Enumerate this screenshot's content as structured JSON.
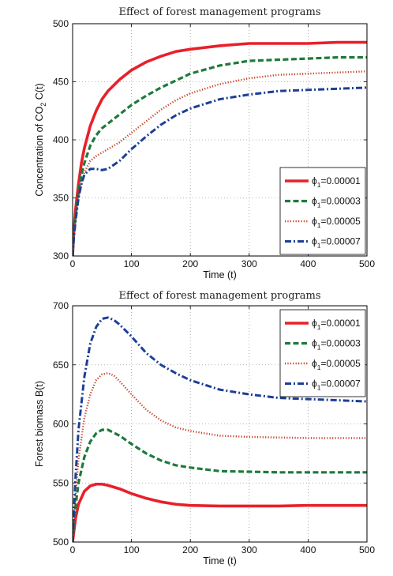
{
  "chart_data": [
    {
      "type": "line",
      "title": "Effect of forest management programs",
      "xlabel": "Time (t)",
      "ylabel": "Concentration of CO",
      "ylabel_sub": "2",
      "ylabel_suffix": " C(t)",
      "xlim": [
        0,
        500
      ],
      "ylim": [
        300,
        500
      ],
      "xticks": [
        0,
        100,
        200,
        300,
        400,
        500
      ],
      "yticks": [
        300,
        350,
        400,
        450,
        500
      ],
      "grid": true,
      "legend_position": "lower-right",
      "series": [
        {
          "name": "ϕ₁=0.00001",
          "legend_symbol": "ϕ",
          "legend_sub": "1",
          "legend_value": "=0.00001",
          "color": "#e8202a",
          "style": "solid",
          "x": [
            0,
            2,
            5,
            10,
            15,
            20,
            30,
            40,
            50,
            60,
            80,
            100,
            125,
            150,
            175,
            200,
            250,
            300,
            350,
            400,
            450,
            500
          ],
          "y": [
            300,
            320,
            340,
            362,
            380,
            393,
            412,
            425,
            435,
            442,
            452,
            460,
            467,
            472,
            476,
            478,
            481,
            483,
            483,
            483,
            484,
            484
          ]
        },
        {
          "name": "ϕ₁=0.00003",
          "legend_symbol": "ϕ",
          "legend_sub": "1",
          "legend_value": "=0.00003",
          "color": "#1e7a3c",
          "style": "dashed",
          "x": [
            0,
            2,
            5,
            10,
            15,
            20,
            30,
            40,
            50,
            60,
            80,
            100,
            125,
            150,
            175,
            200,
            250,
            300,
            350,
            400,
            450,
            500
          ],
          "y": [
            300,
            318,
            335,
            355,
            370,
            380,
            395,
            404,
            410,
            414,
            422,
            430,
            438,
            445,
            451,
            457,
            464,
            468,
            469,
            470,
            471,
            471
          ]
        },
        {
          "name": "ϕ₁=0.00005",
          "legend_symbol": "ϕ",
          "legend_sub": "1",
          "legend_value": "=0.00005",
          "color": "#c2391f",
          "style": "dotted",
          "x": [
            0,
            2,
            5,
            10,
            15,
            20,
            30,
            40,
            50,
            60,
            80,
            100,
            125,
            150,
            175,
            200,
            250,
            300,
            350,
            400,
            450,
            500
          ],
          "y": [
            300,
            316,
            332,
            350,
            362,
            372,
            382,
            386,
            389,
            392,
            398,
            406,
            416,
            426,
            434,
            440,
            448,
            453,
            456,
            457,
            458,
            459
          ]
        },
        {
          "name": "ϕ₁=0.00007",
          "legend_symbol": "ϕ",
          "legend_sub": "1",
          "legend_value": "=0.00007",
          "color": "#1d3f95",
          "style": "dashdot",
          "x": [
            0,
            2,
            5,
            10,
            15,
            20,
            30,
            40,
            50,
            60,
            80,
            100,
            125,
            150,
            175,
            200,
            250,
            300,
            350,
            400,
            450,
            500
          ],
          "y": [
            300,
            315,
            330,
            350,
            362,
            370,
            375,
            375,
            374,
            375,
            382,
            392,
            403,
            413,
            421,
            427,
            435,
            439,
            442,
            443,
            444,
            445
          ]
        }
      ]
    },
    {
      "type": "line",
      "title": "Effect of forest management programs",
      "xlabel": "Time (t)",
      "ylabel": "Forest biomass B(t)",
      "xlim": [
        0,
        500
      ],
      "ylim": [
        500,
        700
      ],
      "xticks": [
        0,
        100,
        200,
        300,
        400,
        500
      ],
      "yticks": [
        500,
        550,
        600,
        650,
        700
      ],
      "grid": true,
      "legend_position": "top-right",
      "series": [
        {
          "name": "ϕ₁=0.00001",
          "legend_symbol": "ϕ",
          "legend_sub": "1",
          "legend_value": "=0.00001",
          "color": "#e8202a",
          "style": "solid",
          "x": [
            0,
            5,
            10,
            20,
            30,
            40,
            50,
            60,
            80,
            100,
            125,
            150,
            175,
            200,
            250,
            300,
            350,
            400,
            450,
            500
          ],
          "y": [
            500,
            520,
            532,
            543,
            547.5,
            549,
            549,
            548,
            545,
            541,
            537,
            534,
            532,
            531,
            530.5,
            530.5,
            530.5,
            531,
            531,
            531
          ]
        },
        {
          "name": "ϕ₁=0.00003",
          "legend_symbol": "ϕ",
          "legend_sub": "1",
          "legend_value": "=0.00003",
          "color": "#1e7a3c",
          "style": "dashed",
          "x": [
            0,
            5,
            10,
            20,
            30,
            40,
            50,
            60,
            80,
            100,
            125,
            150,
            175,
            200,
            250,
            300,
            350,
            400,
            450,
            500
          ],
          "y": [
            500,
            530,
            550,
            572,
            585,
            592,
            595,
            595,
            590,
            583,
            575,
            569,
            565,
            563,
            560,
            559.5,
            559,
            559,
            559,
            559
          ]
        },
        {
          "name": "ϕ₁=0.00005",
          "legend_symbol": "ϕ",
          "legend_sub": "1",
          "legend_value": "=0.00005",
          "color": "#c2391f",
          "style": "dotted",
          "x": [
            0,
            5,
            10,
            20,
            30,
            40,
            50,
            60,
            70,
            80,
            100,
            125,
            150,
            175,
            200,
            250,
            300,
            350,
            400,
            450,
            500
          ],
          "y": [
            500,
            540,
            570,
            605,
            625,
            637,
            642,
            643,
            641,
            636,
            625,
            612,
            603,
            597,
            594,
            590,
            589,
            588.5,
            588,
            588,
            588
          ]
        },
        {
          "name": "ϕ₁=0.00007",
          "legend_symbol": "ϕ",
          "legend_sub": "1",
          "legend_value": "=0.00007",
          "color": "#1d3f95",
          "style": "dashdot",
          "x": [
            0,
            5,
            10,
            20,
            30,
            40,
            50,
            60,
            70,
            80,
            100,
            125,
            150,
            175,
            200,
            250,
            300,
            350,
            400,
            450,
            500
          ],
          "y": [
            500,
            555,
            595,
            640,
            668,
            682,
            689,
            690,
            688,
            684,
            674,
            660,
            650,
            643,
            637,
            629,
            625,
            622,
            621,
            620,
            619
          ]
        }
      ]
    }
  ]
}
